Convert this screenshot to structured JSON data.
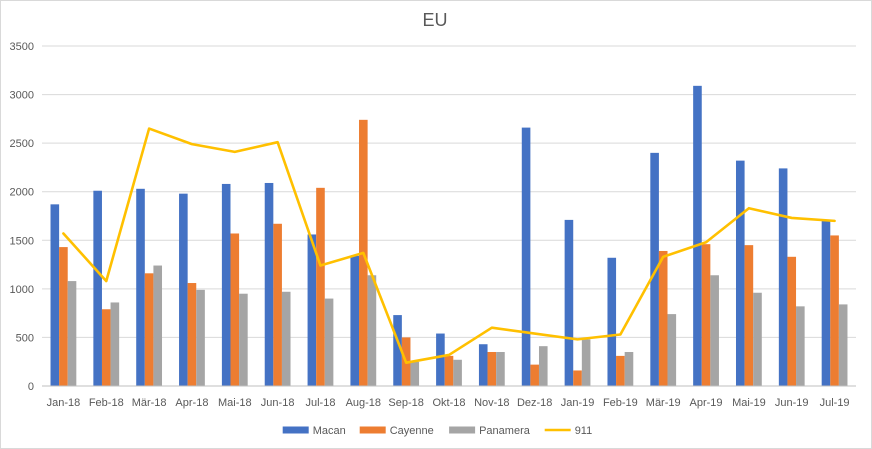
{
  "chart_data": {
    "type": "bar",
    "title": "EU",
    "categories": [
      "Jan-18",
      "Feb-18",
      "Mär-18",
      "Apr-18",
      "Mai-18",
      "Jun-18",
      "Jul-18",
      "Aug-18",
      "Sep-18",
      "Okt-18",
      "Nov-18",
      "Dez-18",
      "Jan-19",
      "Feb-19",
      "Mär-19",
      "Apr-19",
      "Mai-19",
      "Jun-19",
      "Jul-19"
    ],
    "ylim": [
      0,
      3500
    ],
    "yticks": [
      "0",
      "500",
      "1000",
      "1500",
      "2000",
      "2500",
      "3000",
      "3500"
    ],
    "grid": true,
    "legend_position": "bottom",
    "series": [
      {
        "name": "Macan",
        "type": "bar",
        "color": "#4472c4",
        "values": [
          1870,
          2010,
          2030,
          1980,
          2080,
          2090,
          1560,
          1340,
          730,
          540,
          430,
          2660,
          1710,
          1320,
          2400,
          3090,
          2320,
          2240,
          1700
        ]
      },
      {
        "name": "Cayenne",
        "type": "bar",
        "color": "#ed7d31",
        "values": [
          1430,
          790,
          1160,
          1060,
          1570,
          1670,
          2040,
          2740,
          500,
          310,
          350,
          220,
          160,
          310,
          1390,
          1460,
          1450,
          1330,
          1550
        ]
      },
      {
        "name": "Panamera",
        "type": "bar",
        "color": "#a5a5a5",
        "values": [
          1080,
          860,
          1240,
          990,
          950,
          970,
          900,
          1140,
          250,
          270,
          350,
          410,
          480,
          350,
          740,
          1140,
          960,
          820,
          840
        ]
      },
      {
        "name": "911",
        "type": "line",
        "color": "#ffc000",
        "values": [
          1570,
          1080,
          2650,
          2490,
          2410,
          2510,
          1240,
          1370,
          240,
          320,
          600,
          540,
          480,
          530,
          1330,
          1480,
          1830,
          1730,
          1700
        ]
      }
    ]
  }
}
